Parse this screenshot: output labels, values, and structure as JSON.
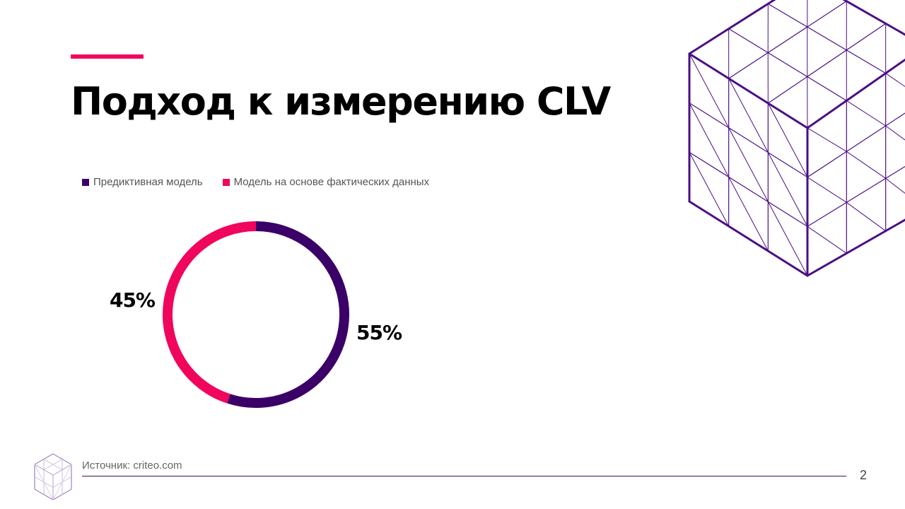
{
  "slide": {
    "title": "Подход к измерению CLV",
    "source_text": "Источник: criteo.com",
    "page_number": "2"
  },
  "colors": {
    "accent": "#f0065c",
    "purple": "#3b0068",
    "cube_line": "#4a0f86"
  },
  "chart_data": {
    "type": "pie",
    "donut": true,
    "legend_position": "top-left",
    "series": [
      {
        "name": "Предиктивная модель",
        "value": 55,
        "label": "55%",
        "color": "#3b0068"
      },
      {
        "name": "Модель на основе фактических данных",
        "value": 45,
        "label": "45%",
        "color": "#f0065c"
      }
    ]
  }
}
